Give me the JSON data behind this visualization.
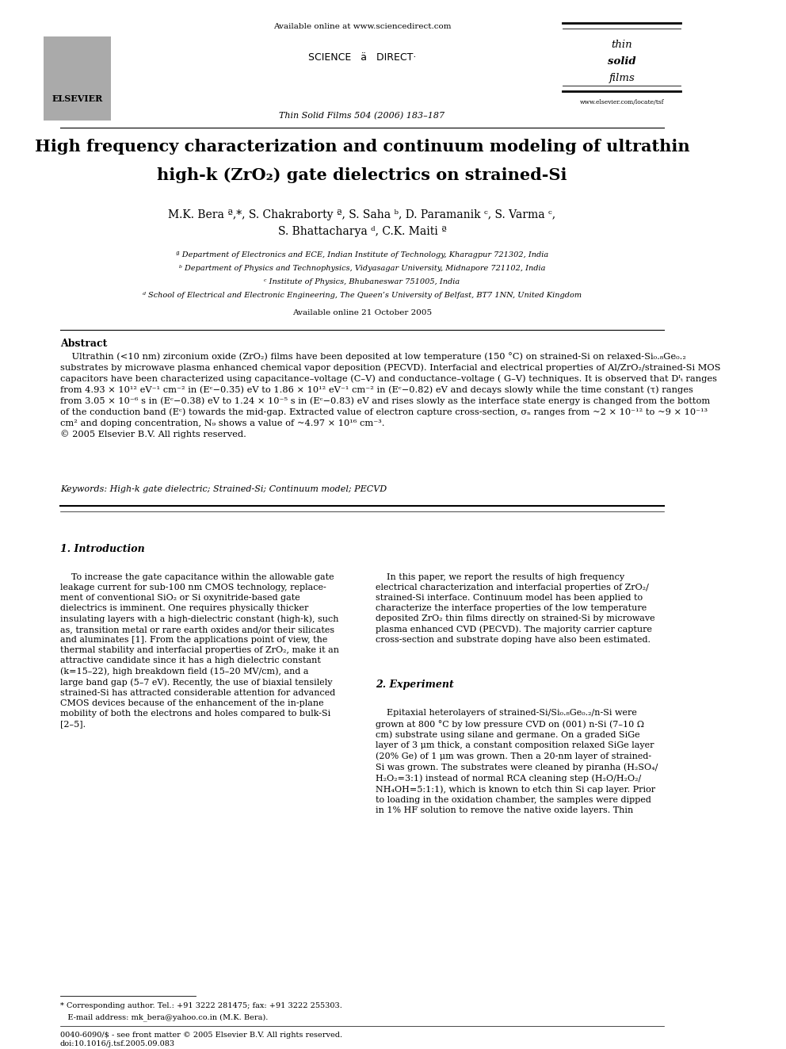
{
  "page_width": 9.92,
  "page_height": 13.23,
  "bg_color": "#ffffff",
  "journal_line": "Thin Solid Films 504 (2006) 183–187",
  "available_online_header": "Available online at www.sciencedirect.com",
  "elsevier": "ELSEVIER",
  "www_elsevier": "www.elsevier.com/locate/tsf",
  "title_line1": "High frequency characterization and continuum modeling of ultrathin",
  "title_line2": "high-k (ZrO₂) gate dielectrics on strained-Si",
  "authors": "M.K. Bera ª,*, S. Chakraborty ª, S. Saha ᵇ, D. Paramanik ᶜ, S. Varma ᶜ,",
  "authors2": "S. Bhattacharya ᵈ, C.K. Maiti ª",
  "affil_a": "ª Department of Electronics and ECE, Indian Institute of Technology, Kharagpur 721302, India",
  "affil_b": "ᵇ Department of Physics and Technophysics, Vidyasagar University, Midnapore 721102, India",
  "affil_c": "ᶜ Institute of Physics, Bhubaneswar 751005, India",
  "affil_d": "ᵈ School of Electrical and Electronic Engineering, The Queen’s University of Belfast, BT7 1NN, United Kingdom",
  "available_online_date": "Available online 21 October 2005",
  "abstract_title": "Abstract",
  "keywords_text": "Keywords: High-k gate dielectric; Strained-Si; Continuum model; PECVD",
  "section1_title": "1. Introduction",
  "section2_title": "2. Experiment",
  "footnote_star": "* Corresponding author. Tel.: +91 3222 281475; fax: +91 3222 255303.",
  "footnote_email": "   E-mail address: mk_bera@yahoo.co.in (M.K. Bera).",
  "footer_issn": "0040-6090/$ - see front matter © 2005 Elsevier B.V. All rights reserved.",
  "footer_doi": "doi:10.1016/j.tsf.2005.09.083"
}
